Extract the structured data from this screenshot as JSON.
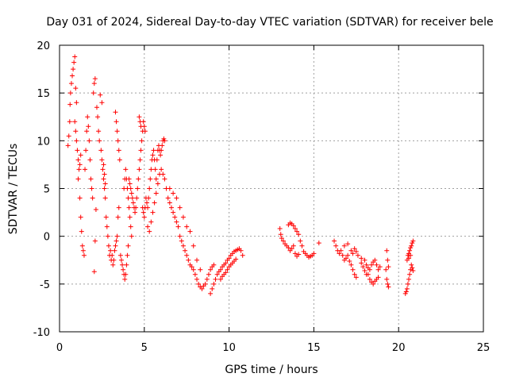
{
  "chart_data": {
    "type": "scatter",
    "title": "Day 031 of 2024, Sidereal Day-to-day VTEC variation (SDTVAR) for receiver bele",
    "xlabel": "GPS time / hours",
    "ylabel": "SDTVAR / TECUs",
    "xlim": [
      0,
      25
    ],
    "ylim": [
      -10,
      20
    ],
    "xticks": [
      0,
      5,
      10,
      15,
      20,
      25
    ],
    "yticks": [
      -10,
      -5,
      0,
      5,
      10,
      15,
      20
    ],
    "grid": true,
    "marker": "+",
    "color": "#ff0000",
    "series": [
      {
        "name": "SDTVAR",
        "points": [
          [
            0.5,
            9.5
          ],
          [
            0.55,
            10.5
          ],
          [
            0.6,
            12
          ],
          [
            0.62,
            13.8
          ],
          [
            0.65,
            15
          ],
          [
            0.7,
            16
          ],
          [
            0.75,
            16.8
          ],
          [
            0.8,
            17.5
          ],
          [
            0.85,
            18.2
          ],
          [
            0.9,
            18.8
          ],
          [
            0.95,
            15.5
          ],
          [
            1.0,
            14
          ],
          [
            0.9,
            12
          ],
          [
            0.95,
            11
          ],
          [
            1.0,
            10
          ],
          [
            1.05,
            9
          ],
          [
            1.1,
            8
          ],
          [
            1.15,
            7
          ],
          [
            1.2,
            7.5
          ],
          [
            1.25,
            8.5
          ],
          [
            1.1,
            6
          ],
          [
            1.2,
            4
          ],
          [
            1.25,
            2
          ],
          [
            1.3,
            0.5
          ],
          [
            1.35,
            -1
          ],
          [
            1.4,
            -1.5
          ],
          [
            1.45,
            -2
          ],
          [
            1.5,
            7
          ],
          [
            1.55,
            9
          ],
          [
            1.6,
            11
          ],
          [
            1.65,
            12.5
          ],
          [
            1.7,
            11.5
          ],
          [
            1.75,
            10
          ],
          [
            1.8,
            8
          ],
          [
            1.85,
            6
          ],
          [
            1.9,
            5
          ],
          [
            1.95,
            4
          ],
          [
            2.0,
            15
          ],
          [
            2.05,
            16
          ],
          [
            2.1,
            16.5
          ],
          [
            2.05,
            -3.7
          ],
          [
            2.1,
            -0.5
          ],
          [
            2.15,
            2.8
          ],
          [
            2.2,
            13.5
          ],
          [
            2.25,
            12.5
          ],
          [
            2.3,
            11
          ],
          [
            2.35,
            10
          ],
          [
            2.4,
            14.8
          ],
          [
            2.5,
            14
          ],
          [
            2.45,
            9
          ],
          [
            2.5,
            8
          ],
          [
            2.55,
            7
          ],
          [
            2.6,
            6
          ],
          [
            2.65,
            5
          ],
          [
            2.7,
            4
          ],
          [
            2.6,
            7.5
          ],
          [
            2.65,
            6.5
          ],
          [
            2.7,
            5.5
          ],
          [
            2.75,
            2
          ],
          [
            2.8,
            1
          ],
          [
            2.85,
            0
          ],
          [
            2.9,
            -1
          ],
          [
            2.95,
            -2
          ],
          [
            3.0,
            -1.5
          ],
          [
            3.05,
            -2.5
          ],
          [
            3.1,
            -2
          ],
          [
            3.15,
            -3
          ],
          [
            3.2,
            -2.5
          ],
          [
            3.25,
            -1.5
          ],
          [
            3.3,
            -1
          ],
          [
            3.35,
            -0.5
          ],
          [
            3.4,
            0
          ],
          [
            3.45,
            2
          ],
          [
            3.5,
            3
          ],
          [
            3.3,
            13
          ],
          [
            3.35,
            12
          ],
          [
            3.4,
            11
          ],
          [
            3.45,
            10
          ],
          [
            3.5,
            9
          ],
          [
            3.55,
            8
          ],
          [
            3.6,
            -2
          ],
          [
            3.65,
            -2.5
          ],
          [
            3.7,
            -3
          ],
          [
            3.75,
            -3.5
          ],
          [
            3.8,
            -4
          ],
          [
            3.85,
            -4.5
          ],
          [
            3.9,
            -4
          ],
          [
            3.95,
            -3
          ],
          [
            4.0,
            -2
          ],
          [
            4.05,
            -1
          ],
          [
            3.8,
            5
          ],
          [
            3.85,
            6
          ],
          [
            3.9,
            7
          ],
          [
            3.95,
            6
          ],
          [
            4.0,
            5
          ],
          [
            4.05,
            4
          ],
          [
            4.1,
            3
          ],
          [
            4.15,
            2
          ],
          [
            4.2,
            1
          ],
          [
            4.25,
            0
          ],
          [
            4.1,
            6
          ],
          [
            4.15,
            5.5
          ],
          [
            4.2,
            5
          ],
          [
            4.25,
            4.5
          ],
          [
            4.3,
            4
          ],
          [
            4.35,
            3.5
          ],
          [
            4.4,
            3
          ],
          [
            4.45,
            2.5
          ],
          [
            4.5,
            3
          ],
          [
            4.55,
            4
          ],
          [
            4.6,
            5
          ],
          [
            4.65,
            6
          ],
          [
            4.7,
            7
          ],
          [
            4.75,
            8
          ],
          [
            4.8,
            9
          ],
          [
            4.85,
            10
          ],
          [
            4.9,
            11
          ],
          [
            4.95,
            12
          ],
          [
            5.0,
            11.5
          ],
          [
            5.05,
            11
          ],
          [
            4.7,
            12.5
          ],
          [
            4.75,
            12
          ],
          [
            4.8,
            11.5
          ],
          [
            4.9,
            3
          ],
          [
            4.95,
            2.5
          ],
          [
            5.0,
            2
          ],
          [
            5.05,
            3
          ],
          [
            5.1,
            4
          ],
          [
            5.15,
            3.5
          ],
          [
            5.2,
            3
          ],
          [
            5.25,
            4
          ],
          [
            5.3,
            5
          ],
          [
            5.35,
            6
          ],
          [
            5.4,
            7
          ],
          [
            5.45,
            8
          ],
          [
            5.5,
            8.5
          ],
          [
            5.55,
            9
          ],
          [
            5.6,
            8
          ],
          [
            5.65,
            7
          ],
          [
            5.7,
            6
          ],
          [
            5.75,
            8
          ],
          [
            5.8,
            9
          ],
          [
            5.85,
            9.5
          ],
          [
            5.9,
            9
          ],
          [
            5.95,
            8.5
          ],
          [
            6.0,
            9
          ],
          [
            6.05,
            9.5
          ],
          [
            6.1,
            10
          ],
          [
            6.15,
            10.2
          ],
          [
            6.2,
            10
          ],
          [
            5.2,
            1
          ],
          [
            5.3,
            0.5
          ],
          [
            5.4,
            1.5
          ],
          [
            5.5,
            2.5
          ],
          [
            5.6,
            3.5
          ],
          [
            5.7,
            4.5
          ],
          [
            5.8,
            5.5
          ],
          [
            5.9,
            6.5
          ],
          [
            6.0,
            7
          ],
          [
            6.1,
            6.5
          ],
          [
            6.2,
            6
          ],
          [
            6.3,
            5
          ],
          [
            6.4,
            4
          ],
          [
            6.5,
            3.5
          ],
          [
            6.6,
            3
          ],
          [
            6.7,
            2.5
          ],
          [
            6.8,
            2
          ],
          [
            6.9,
            1.5
          ],
          [
            7.0,
            1
          ],
          [
            7.1,
            0
          ],
          [
            7.2,
            -0.5
          ],
          [
            7.3,
            -1
          ],
          [
            7.4,
            -1.5
          ],
          [
            7.5,
            -2
          ],
          [
            7.6,
            -2.5
          ],
          [
            7.7,
            -3
          ],
          [
            7.8,
            -3.2
          ],
          [
            7.9,
            -3.5
          ],
          [
            8.0,
            -4
          ],
          [
            8.1,
            -4.5
          ],
          [
            8.2,
            -5
          ],
          [
            8.3,
            -5.3
          ],
          [
            8.4,
            -5.5
          ],
          [
            8.5,
            -5.2
          ],
          [
            8.6,
            -5
          ],
          [
            8.7,
            -4.5
          ],
          [
            8.8,
            -4
          ],
          [
            8.9,
            -3.5
          ],
          [
            9.0,
            -3.2
          ],
          [
            9.1,
            -3
          ],
          [
            8.9,
            -6
          ],
          [
            9.0,
            -5.5
          ],
          [
            9.1,
            -5
          ],
          [
            9.2,
            -4.5
          ],
          [
            9.3,
            -4
          ],
          [
            9.4,
            -3.7
          ],
          [
            9.5,
            -3.5
          ],
          [
            9.6,
            -3.2
          ],
          [
            9.7,
            -3
          ],
          [
            9.8,
            -2.8
          ],
          [
            9.9,
            -2.5
          ],
          [
            10.0,
            -2.3
          ],
          [
            10.1,
            -2
          ],
          [
            10.2,
            -1.8
          ],
          [
            10.3,
            -1.6
          ],
          [
            10.4,
            -1.5
          ],
          [
            10.5,
            -1.4
          ],
          [
            10.6,
            -1.3
          ],
          [
            10.7,
            -1.5
          ],
          [
            10.8,
            -2
          ],
          [
            9.5,
            -4.5
          ],
          [
            9.6,
            -4.2
          ],
          [
            9.7,
            -4
          ],
          [
            9.8,
            -3.8
          ],
          [
            9.9,
            -3.5
          ],
          [
            10.0,
            -3.2
          ],
          [
            10.1,
            -3
          ],
          [
            10.2,
            -2.8
          ],
          [
            10.3,
            -2.6
          ],
          [
            10.4,
            -2.4
          ],
          [
            6.5,
            5
          ],
          [
            6.7,
            4.5
          ],
          [
            6.9,
            4
          ],
          [
            7.1,
            3
          ],
          [
            7.3,
            2
          ],
          [
            7.5,
            1
          ],
          [
            7.7,
            0.5
          ],
          [
            7.9,
            -1
          ],
          [
            8.1,
            -2.5
          ],
          [
            8.3,
            -3.5
          ],
          [
            13.0,
            0.8
          ],
          [
            13.05,
            0.2
          ],
          [
            13.1,
            -0.2
          ],
          [
            13.2,
            -0.5
          ],
          [
            13.3,
            -0.8
          ],
          [
            13.4,
            -1
          ],
          [
            13.5,
            -1.2
          ],
          [
            13.6,
            -1.5
          ],
          [
            13.7,
            -1.3
          ],
          [
            13.8,
            -1
          ],
          [
            13.5,
            1.2
          ],
          [
            13.6,
            1.4
          ],
          [
            13.7,
            1.3
          ],
          [
            13.8,
            1.1
          ],
          [
            13.9,
            0.8
          ],
          [
            14.0,
            0.5
          ],
          [
            14.1,
            0.2
          ],
          [
            14.2,
            -0.5
          ],
          [
            14.3,
            -1
          ],
          [
            14.4,
            -1.6
          ],
          [
            14.5,
            -1.8
          ],
          [
            14.6,
            -2
          ],
          [
            14.7,
            -2.2
          ],
          [
            14.8,
            -2.1
          ],
          [
            14.9,
            -2
          ],
          [
            15.0,
            -1.8
          ],
          [
            15.3,
            -0.7
          ],
          [
            13.9,
            -1.8
          ],
          [
            14.0,
            -2.1
          ],
          [
            14.1,
            -1.9
          ],
          [
            16.2,
            -0.5
          ],
          [
            16.3,
            -1
          ],
          [
            16.4,
            -1.5
          ],
          [
            16.5,
            -1.8
          ],
          [
            16.6,
            -1.5
          ],
          [
            16.7,
            -2
          ],
          [
            16.8,
            -2.5
          ],
          [
            16.9,
            -2.3
          ],
          [
            17.0,
            -2
          ],
          [
            17.1,
            -2.6
          ],
          [
            17.2,
            -3
          ],
          [
            17.3,
            -3.5
          ],
          [
            17.4,
            -4
          ],
          [
            17.5,
            -4.3
          ],
          [
            16.8,
            -1
          ],
          [
            17.0,
            -0.8
          ],
          [
            17.2,
            -1.5
          ],
          [
            17.4,
            -1.3
          ],
          [
            17.6,
            -2
          ],
          [
            17.8,
            -2.3
          ],
          [
            18.0,
            -2.5
          ],
          [
            18.1,
            -3
          ],
          [
            18.2,
            -3.3
          ],
          [
            18.3,
            -3.5
          ],
          [
            18.4,
            -3
          ],
          [
            18.5,
            -2.7
          ],
          [
            18.6,
            -2.5
          ],
          [
            18.7,
            -3
          ],
          [
            18.8,
            -3.5
          ],
          [
            18.9,
            -3.2
          ],
          [
            18.2,
            -4
          ],
          [
            18.3,
            -4.5
          ],
          [
            18.4,
            -4.8
          ],
          [
            18.5,
            -5
          ],
          [
            18.6,
            -4.7
          ],
          [
            18.7,
            -4.5
          ],
          [
            18.8,
            -4.3
          ],
          [
            19.3,
            -1.5
          ],
          [
            19.35,
            -2.5
          ],
          [
            19.4,
            -3.2
          ],
          [
            19.3,
            -4.5
          ],
          [
            19.35,
            -5
          ],
          [
            19.4,
            -5.3
          ],
          [
            19.25,
            -3.5
          ],
          [
            17.8,
            -2.8
          ],
          [
            17.9,
            -3.2
          ],
          [
            18.0,
            -3.6
          ],
          [
            18.1,
            -4
          ],
          [
            17.3,
            -1.8
          ],
          [
            17.5,
            -1.6
          ],
          [
            20.4,
            -6
          ],
          [
            20.45,
            -5.8
          ],
          [
            20.5,
            -5.5
          ],
          [
            20.55,
            -5
          ],
          [
            20.6,
            -4.5
          ],
          [
            20.65,
            -4
          ],
          [
            20.7,
            -3.5
          ],
          [
            20.75,
            -3
          ],
          [
            20.8,
            -3.3
          ],
          [
            20.85,
            -3.6
          ],
          [
            20.5,
            -2.5
          ],
          [
            20.55,
            -2
          ],
          [
            20.6,
            -1.8
          ],
          [
            20.65,
            -1.5
          ],
          [
            20.7,
            -1.2
          ],
          [
            20.75,
            -1
          ],
          [
            20.8,
            -0.7
          ],
          [
            20.85,
            -0.5
          ],
          [
            20.6,
            -2.3
          ],
          [
            20.7,
            -2
          ]
        ]
      }
    ]
  }
}
